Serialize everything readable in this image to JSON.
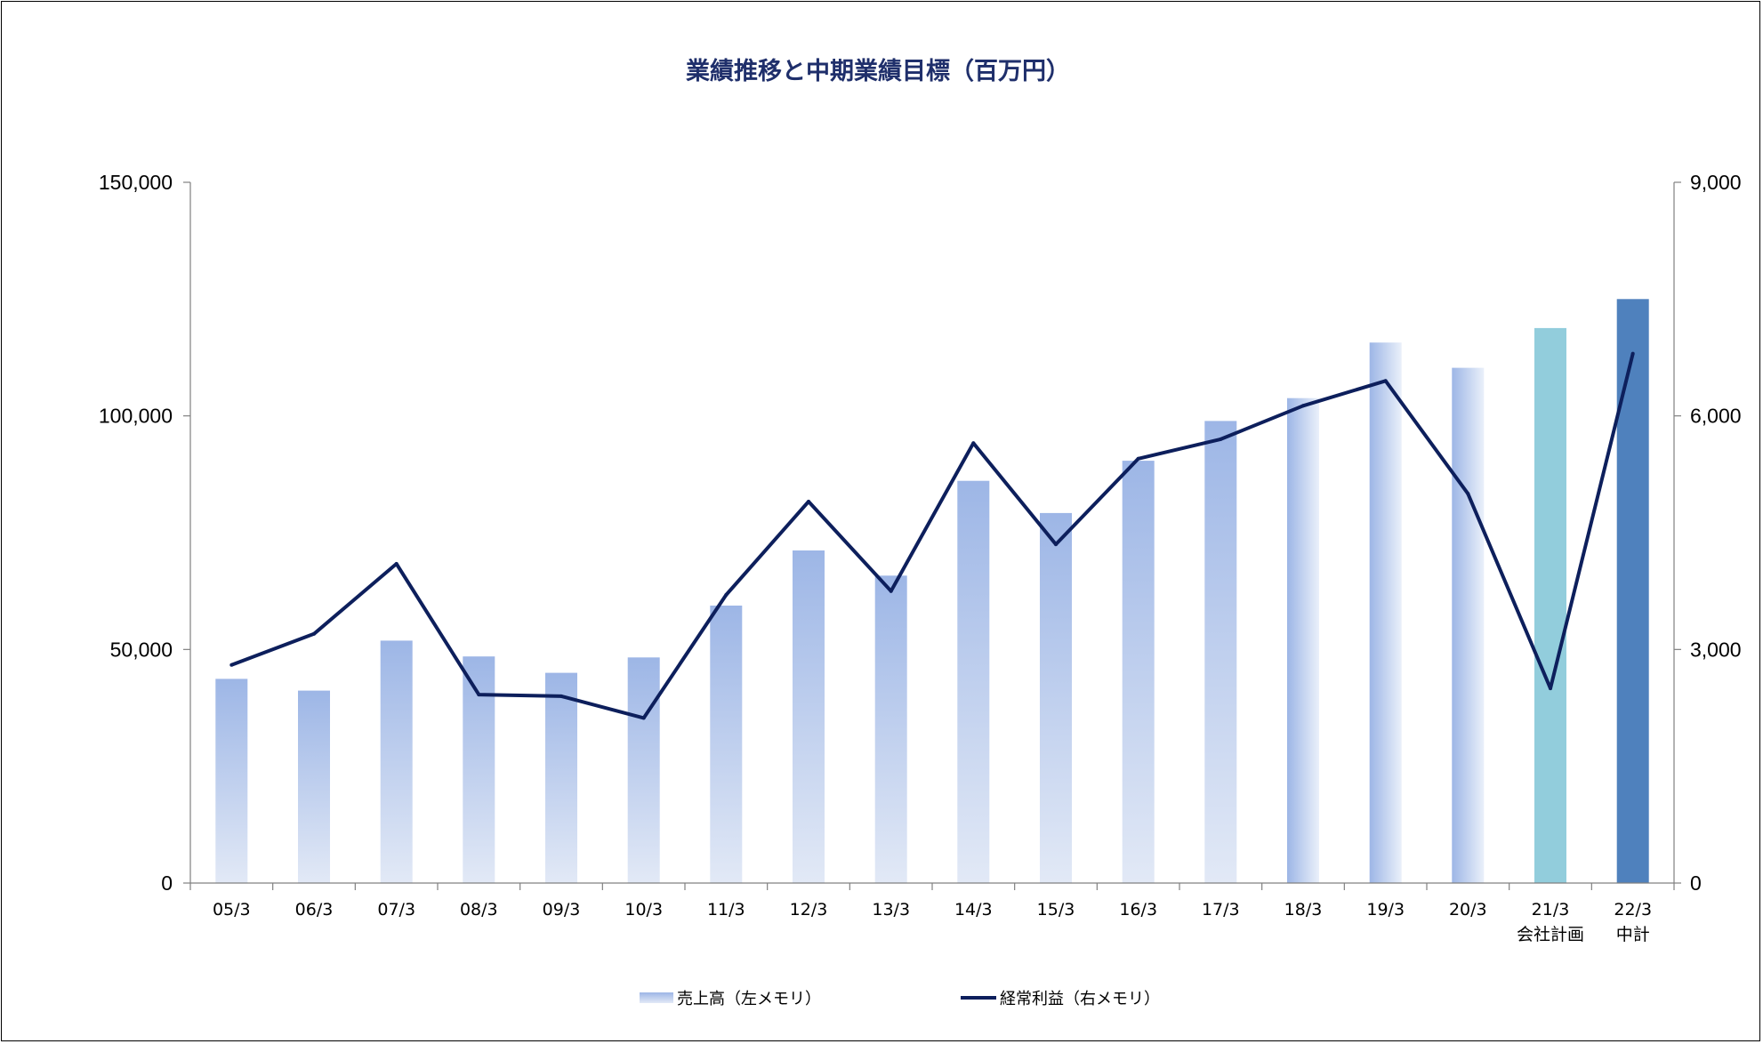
{
  "chart_data": {
    "type": "bar",
    "title": "業績推移と中期業績目標（百万円）",
    "categories": [
      "05/3",
      "06/3",
      "07/3",
      "08/3",
      "09/3",
      "10/3",
      "11/3",
      "12/3",
      "13/3",
      "14/3",
      "15/3",
      "16/3",
      "17/3",
      "18/3",
      "19/3",
      "20/3",
      "21/3",
      "22/3"
    ],
    "category_sublabels": [
      "",
      "",
      "",
      "",
      "",
      "",
      "",
      "",
      "",
      "",
      "",
      "",
      "",
      "",
      "",
      "",
      "会社計画",
      "中計"
    ],
    "y_left": {
      "ylim": [
        0,
        150000
      ],
      "ticks": [
        0,
        50000,
        100000,
        150000
      ],
      "tick_labels": [
        "0",
        "50,000",
        "100,000",
        "150,000"
      ]
    },
    "y_right": {
      "ylim": [
        0,
        9000
      ],
      "ticks": [
        0,
        3000,
        6000,
        9000
      ],
      "tick_labels": [
        "0",
        "3,000",
        "6,000",
        "9,000"
      ]
    },
    "series": [
      {
        "name": "売上高（左メモリ）",
        "type": "bar",
        "axis": "left",
        "values": [
          43700,
          41200,
          51900,
          48500,
          45000,
          48300,
          59400,
          71200,
          65800,
          86100,
          79200,
          90400,
          98900,
          103800,
          115700,
          110300,
          118800,
          125000
        ],
        "colors": [
          "#a2bae8",
          "#a2bae8",
          "#a2bae8",
          "#a2bae8",
          "#a2bae8",
          "#a2bae8",
          "#a2bae8",
          "#a2bae8",
          "#a2bae8",
          "#a2bae8",
          "#a2bae8",
          "#a2bae8",
          "#a2bae8",
          "#a2bae8",
          "#a2bae8",
          "#a2bae8",
          "#92cddc",
          "#4f81bd"
        ]
      },
      {
        "name": "経常利益（右メモリ）",
        "type": "line",
        "axis": "right",
        "values": [
          2800,
          3200,
          4100,
          2420,
          2400,
          2120,
          3700,
          4900,
          3750,
          5650,
          4350,
          5450,
          5700,
          6130,
          6450,
          5000,
          2500,
          6800
        ],
        "color": "#0d1f5c"
      }
    ],
    "grid": false,
    "legend": "bottom"
  }
}
